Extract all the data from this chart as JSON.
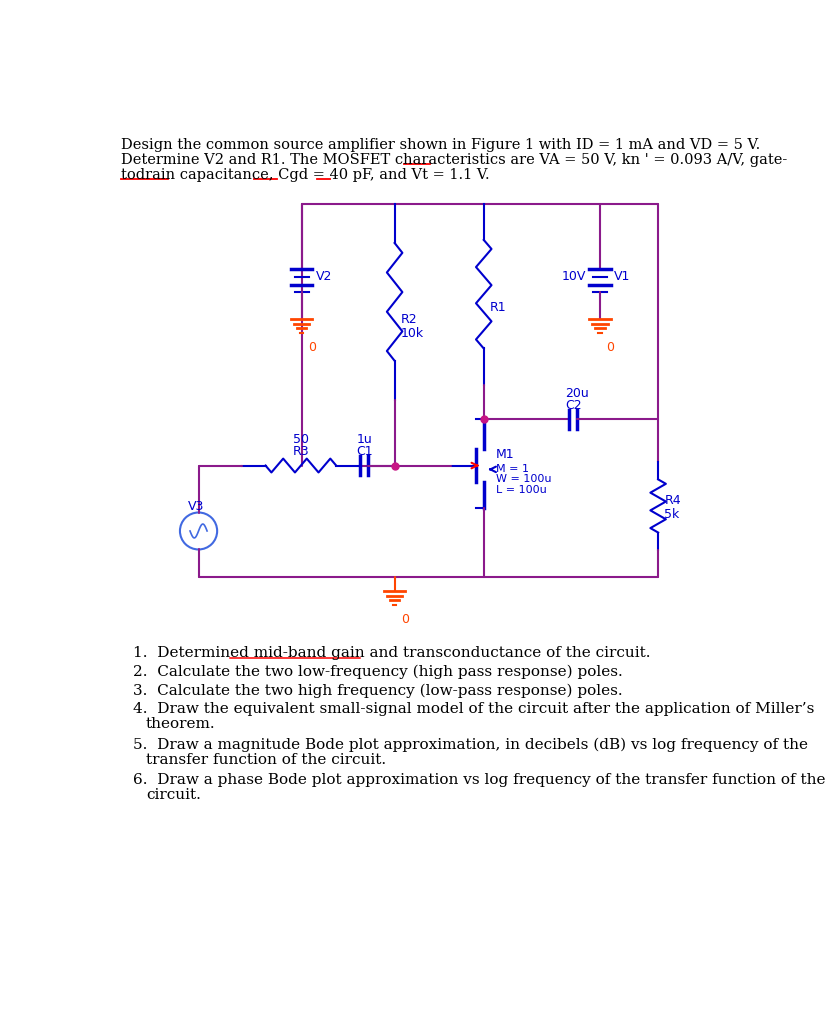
{
  "bg_color": "#ffffff",
  "wire_color": "#8B1A8B",
  "component_color": "#0000CD",
  "gnd_color": "#FF4500",
  "list_items": [
    "Determined mid-band gain and transconductance of the circuit.",
    "Calculate the two low-frequency (high pass response) poles.",
    "Calculate the two high frequency (low-pass response) poles.",
    "Draw the equivalent small-signal model of the circuit after the application of Miller’s theorem.",
    "Draw a magnitude Bode plot approximation, in decibels (dB) vs log frequency of the transfer function of the circuit.",
    "Draw a phase Bode plot approximation vs log frequency of the transfer function of the circuit."
  ],
  "font_size_title": 10.5,
  "font_size_list": 11
}
